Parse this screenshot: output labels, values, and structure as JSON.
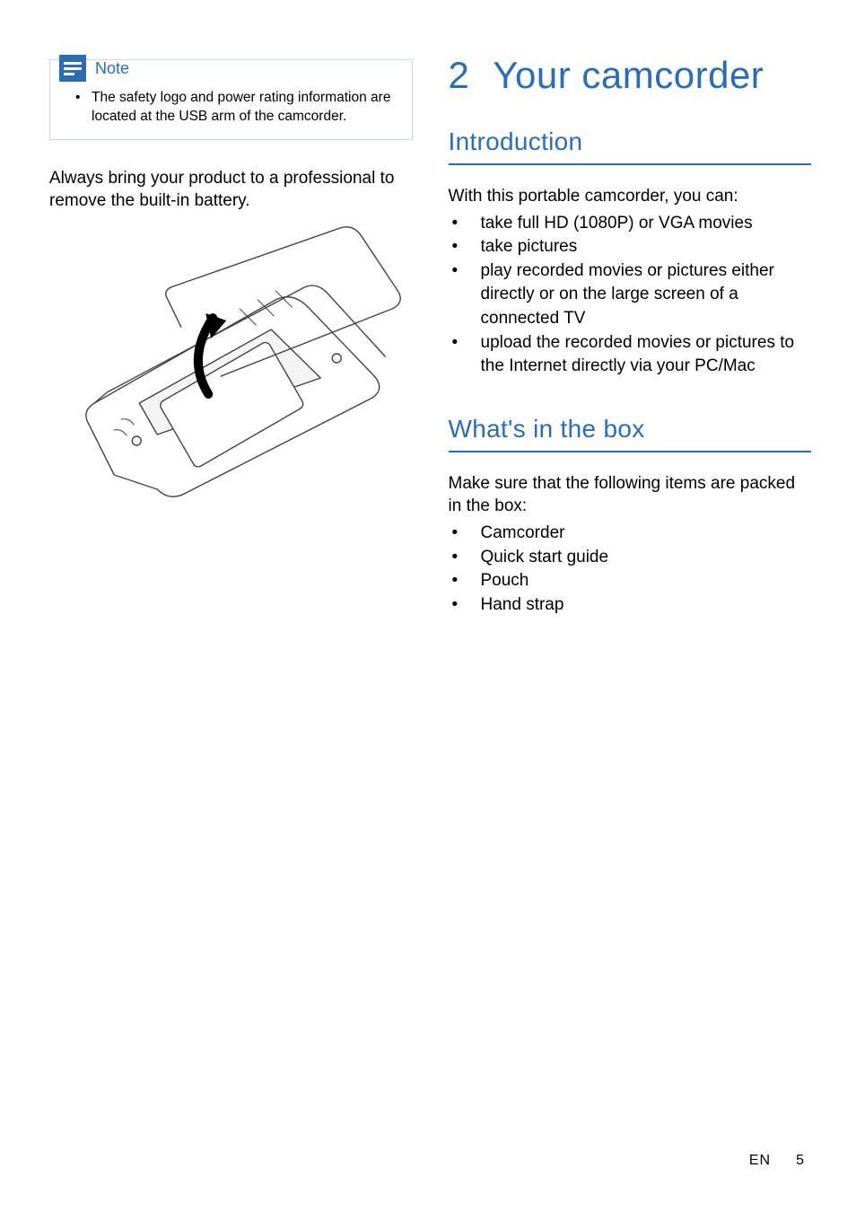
{
  "colors": {
    "brand_blue": "#2a6db5",
    "note_border": "#c9d9e8",
    "text": "#000000",
    "bg": "#ffffff"
  },
  "left": {
    "note": {
      "label": "Note",
      "bullet": "•",
      "text": "The safety logo and power rating information are located at the USB arm of the camcorder."
    },
    "body": "Always bring your product to a professional to remove the built-in battery.",
    "image_alt": "camcorder-exploded-view"
  },
  "right": {
    "chapter_num": "2",
    "chapter_title": "Your camcorder",
    "intro": {
      "heading": "Introduction",
      "lead": "With this portable camcorder, you can:",
      "items": [
        "take full HD (1080P) or VGA movies",
        "take pictures",
        "play recorded movies or pictures either directly or on the large screen of a connected TV",
        "upload the recorded movies or pictures to the Internet directly via your PC/Mac"
      ]
    },
    "box": {
      "heading": "What's in the box",
      "lead": "Make sure that the following items are packed in the box:",
      "items": [
        "Camcorder",
        "Quick start guide",
        "Pouch",
        "Hand strap"
      ]
    }
  },
  "footer": {
    "lang": "EN",
    "page": "5"
  }
}
